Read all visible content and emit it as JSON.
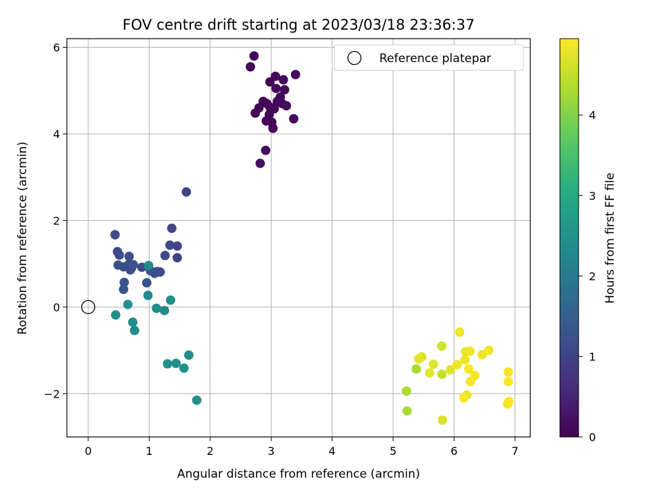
{
  "chart_data": {
    "type": "scatter",
    "title": "FOV centre drift starting at 2023/03/18 23:36:37",
    "xlabel": "Angular distance from reference (arcmin)",
    "ylabel": "Rotation from reference (arcmin)",
    "xlim": [
      -0.35,
      7.25
    ],
    "ylim": [
      -3.0,
      6.2
    ],
    "xticks": [
      0,
      1,
      2,
      3,
      4,
      5,
      6,
      7
    ],
    "xtick_labels": [
      "0",
      "1",
      "2",
      "3",
      "4",
      "5",
      "6",
      "7"
    ],
    "yticks": [
      -2,
      0,
      2,
      4,
      6
    ],
    "ytick_labels": [
      "−2",
      "0",
      "2",
      "4",
      "6"
    ],
    "grid": true,
    "legend": {
      "position": "top-right",
      "entries": [
        "Reference platepar"
      ]
    },
    "reference_point": {
      "x": 0,
      "y": 0,
      "name": "Reference platepar"
    },
    "colorbar": {
      "label": "Hours from first FF file",
      "min": 0,
      "max": 4.95,
      "colormap": "viridis",
      "ticks": [
        0,
        1,
        2,
        3,
        4
      ],
      "tick_labels": [
        "0",
        "1",
        "2",
        "3",
        "4"
      ]
    },
    "points": [
      {
        "x": 2.72,
        "y": 5.8,
        "h": 0.05
      },
      {
        "x": 2.66,
        "y": 5.55,
        "h": 0.05
      },
      {
        "x": 3.4,
        "y": 5.37,
        "h": 0.1
      },
      {
        "x": 3.07,
        "y": 5.33,
        "h": 0.1
      },
      {
        "x": 2.98,
        "y": 5.2,
        "h": 0.05
      },
      {
        "x": 3.2,
        "y": 5.25,
        "h": 0.1
      },
      {
        "x": 3.08,
        "y": 5.05,
        "h": 0.15
      },
      {
        "x": 3.22,
        "y": 5.02,
        "h": 0.1
      },
      {
        "x": 3.15,
        "y": 4.85,
        "h": 0.1
      },
      {
        "x": 2.87,
        "y": 4.75,
        "h": 0.05
      },
      {
        "x": 3.1,
        "y": 4.75,
        "h": 0.1
      },
      {
        "x": 2.93,
        "y": 4.7,
        "h": 0.05
      },
      {
        "x": 3.18,
        "y": 4.7,
        "h": 0.1
      },
      {
        "x": 3.25,
        "y": 4.65,
        "h": 0.15
      },
      {
        "x": 2.8,
        "y": 4.6,
        "h": 0.05
      },
      {
        "x": 2.98,
        "y": 4.62,
        "h": 0.1
      },
      {
        "x": 3.05,
        "y": 4.58,
        "h": 0.1
      },
      {
        "x": 2.74,
        "y": 4.48,
        "h": 0.05
      },
      {
        "x": 2.97,
        "y": 4.45,
        "h": 0.05
      },
      {
        "x": 3.37,
        "y": 4.35,
        "h": 0.15
      },
      {
        "x": 2.92,
        "y": 4.3,
        "h": 0.05
      },
      {
        "x": 3.01,
        "y": 4.27,
        "h": 0.1
      },
      {
        "x": 3.03,
        "y": 4.13,
        "h": 0.1
      },
      {
        "x": 2.91,
        "y": 3.62,
        "h": 0.2
      },
      {
        "x": 2.82,
        "y": 3.32,
        "h": 0.2
      },
      {
        "x": 1.61,
        "y": 2.66,
        "h": 1.0
      },
      {
        "x": 1.37,
        "y": 1.82,
        "h": 1.05
      },
      {
        "x": 0.44,
        "y": 1.67,
        "h": 1.1
      },
      {
        "x": 1.34,
        "y": 1.43,
        "h": 1.05
      },
      {
        "x": 1.46,
        "y": 1.41,
        "h": 1.0
      },
      {
        "x": 0.48,
        "y": 1.28,
        "h": 1.1
      },
      {
        "x": 0.51,
        "y": 1.2,
        "h": 1.15
      },
      {
        "x": 1.26,
        "y": 1.19,
        "h": 1.1
      },
      {
        "x": 0.67,
        "y": 1.17,
        "h": 1.1
      },
      {
        "x": 1.46,
        "y": 1.14,
        "h": 1.0
      },
      {
        "x": 0.49,
        "y": 0.97,
        "h": 1.2
      },
      {
        "x": 0.66,
        "y": 0.98,
        "h": 1.2
      },
      {
        "x": 0.74,
        "y": 0.98,
        "h": 1.3
      },
      {
        "x": 0.58,
        "y": 0.93,
        "h": 1.2
      },
      {
        "x": 0.71,
        "y": 0.9,
        "h": 1.3
      },
      {
        "x": 0.88,
        "y": 0.92,
        "h": 1.1
      },
      {
        "x": 0.69,
        "y": 0.86,
        "h": 1.2
      },
      {
        "x": 1.02,
        "y": 0.84,
        "h": 1.2
      },
      {
        "x": 1.13,
        "y": 0.82,
        "h": 1.2
      },
      {
        "x": 1.18,
        "y": 0.81,
        "h": 1.1
      },
      {
        "x": 1.09,
        "y": 0.78,
        "h": 1.15
      },
      {
        "x": 0.59,
        "y": 0.57,
        "h": 1.3
      },
      {
        "x": 0.96,
        "y": 0.56,
        "h": 1.3
      },
      {
        "x": 0.58,
        "y": 0.41,
        "h": 1.3
      },
      {
        "x": 0.99,
        "y": 0.96,
        "h": 2.4
      },
      {
        "x": 0.98,
        "y": 0.27,
        "h": 2.4
      },
      {
        "x": 1.35,
        "y": 0.16,
        "h": 2.45
      },
      {
        "x": 0.65,
        "y": 0.06,
        "h": 2.5
      },
      {
        "x": 1.12,
        "y": -0.03,
        "h": 2.4
      },
      {
        "x": 1.25,
        "y": -0.08,
        "h": 2.4
      },
      {
        "x": 0.45,
        "y": -0.18,
        "h": 2.45
      },
      {
        "x": 0.73,
        "y": -0.35,
        "h": 2.4
      },
      {
        "x": 0.76,
        "y": -0.54,
        "h": 2.4
      },
      {
        "x": 1.65,
        "y": -1.11,
        "h": 2.4
      },
      {
        "x": 1.3,
        "y": -1.31,
        "h": 2.45
      },
      {
        "x": 1.44,
        "y": -1.3,
        "h": 2.45
      },
      {
        "x": 1.57,
        "y": -1.41,
        "h": 2.5
      },
      {
        "x": 1.78,
        "y": -2.15,
        "h": 2.5
      },
      {
        "x": 6.09,
        "y": -0.58,
        "h": 4.85
      },
      {
        "x": 5.8,
        "y": -0.9,
        "h": 4.6
      },
      {
        "x": 6.19,
        "y": -1.03,
        "h": 4.8
      },
      {
        "x": 6.26,
        "y": -1.02,
        "h": 4.85
      },
      {
        "x": 6.57,
        "y": -1.0,
        "h": 4.9
      },
      {
        "x": 6.46,
        "y": -1.1,
        "h": 4.85
      },
      {
        "x": 5.47,
        "y": -1.15,
        "h": 4.7
      },
      {
        "x": 5.42,
        "y": -1.2,
        "h": 4.75
      },
      {
        "x": 6.18,
        "y": -1.22,
        "h": 4.8
      },
      {
        "x": 5.66,
        "y": -1.32,
        "h": 4.7
      },
      {
        "x": 6.05,
        "y": -1.33,
        "h": 4.85
      },
      {
        "x": 5.38,
        "y": -1.43,
        "h": 4.3
      },
      {
        "x": 5.94,
        "y": -1.45,
        "h": 4.75
      },
      {
        "x": 6.24,
        "y": -1.43,
        "h": 4.9
      },
      {
        "x": 5.6,
        "y": -1.52,
        "h": 4.75
      },
      {
        "x": 5.8,
        "y": -1.55,
        "h": 4.5
      },
      {
        "x": 6.34,
        "y": -1.58,
        "h": 4.85
      },
      {
        "x": 6.89,
        "y": -1.5,
        "h": 4.9
      },
      {
        "x": 6.27,
        "y": -1.72,
        "h": 4.9
      },
      {
        "x": 6.89,
        "y": -1.72,
        "h": 4.95
      },
      {
        "x": 5.22,
        "y": -1.94,
        "h": 4.3
      },
      {
        "x": 6.21,
        "y": -2.03,
        "h": 4.8
      },
      {
        "x": 6.16,
        "y": -2.1,
        "h": 4.9
      },
      {
        "x": 6.9,
        "y": -2.18,
        "h": 4.95
      },
      {
        "x": 6.88,
        "y": -2.24,
        "h": 4.9
      },
      {
        "x": 5.23,
        "y": -2.4,
        "h": 4.3
      },
      {
        "x": 5.81,
        "y": -2.61,
        "h": 4.7
      }
    ]
  }
}
